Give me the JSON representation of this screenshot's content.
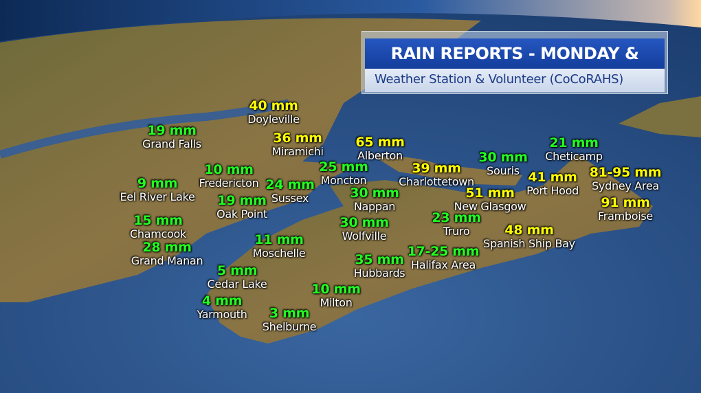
{
  "title": "RAIN REPORTS - MONDAY & TUESDAY",
  "subtitle": "Weather Station & Volunteer (CoCoRAHS)",
  "colors": {
    "low_total": "#22ff22",
    "high_total": "#ffff00",
    "title_bar": "#1c4aae",
    "subtitle_text": "#1b3a86",
    "ocean": "#2a4f86",
    "land": "#7a6a3c"
  },
  "locations": [
    {
      "name": "Doyleville",
      "value": "40 mm",
      "color": "high_total"
    },
    {
      "name": "Grand Falls",
      "value": "19 mm",
      "color": "low_total"
    },
    {
      "name": "Miramichi",
      "value": "36 mm",
      "color": "high_total"
    },
    {
      "name": "Alberton",
      "value": "65 mm",
      "color": "high_total"
    },
    {
      "name": "Cheticamp",
      "value": "21 mm",
      "color": "low_total"
    },
    {
      "name": "Souris",
      "value": "30 mm",
      "color": "low_total"
    },
    {
      "name": "Moncton",
      "value": "25 mm",
      "color": "low_total"
    },
    {
      "name": "Fredericton",
      "value": "10 mm",
      "color": "low_total"
    },
    {
      "name": "Charlottetown",
      "value": "39 mm",
      "color": "high_total"
    },
    {
      "name": "Sussex",
      "value": "24 mm",
      "color": "low_total"
    },
    {
      "name": "Eel River Lake",
      "value": "9 mm",
      "color": "low_total"
    },
    {
      "name": "Port Hood",
      "value": "41 mm",
      "color": "high_total"
    },
    {
      "name": "Sydney Area",
      "value": "81-95 mm",
      "color": "high_total"
    },
    {
      "name": "Nappan",
      "value": "30 mm",
      "color": "low_total"
    },
    {
      "name": "New Glasgow",
      "value": "51 mm",
      "color": "high_total"
    },
    {
      "name": "Oak Point",
      "value": "19 mm",
      "color": "low_total"
    },
    {
      "name": "Framboise",
      "value": "91 mm",
      "color": "high_total"
    },
    {
      "name": "Chamcook",
      "value": "15 mm",
      "color": "low_total"
    },
    {
      "name": "Truro",
      "value": "23 mm",
      "color": "low_total"
    },
    {
      "name": "Wolfville",
      "value": "30 mm",
      "color": "low_total"
    },
    {
      "name": "Spanish Ship Bay",
      "value": "48 mm",
      "color": "high_total"
    },
    {
      "name": "Grand Manan",
      "value": "28 mm",
      "color": "low_total"
    },
    {
      "name": "Moschelle",
      "value": "11 mm",
      "color": "low_total"
    },
    {
      "name": "Hubbards",
      "value": "35 mm",
      "color": "low_total"
    },
    {
      "name": "Halifax Area",
      "value": "17-25 mm",
      "color": "low_total"
    },
    {
      "name": "Cedar Lake",
      "value": "5 mm",
      "color": "low_total"
    },
    {
      "name": "Milton",
      "value": "10 mm",
      "color": "low_total"
    },
    {
      "name": "Yarmouth",
      "value": "4 mm",
      "color": "low_total"
    },
    {
      "name": "Shelburne",
      "value": "3 mm",
      "color": "low_total"
    }
  ]
}
